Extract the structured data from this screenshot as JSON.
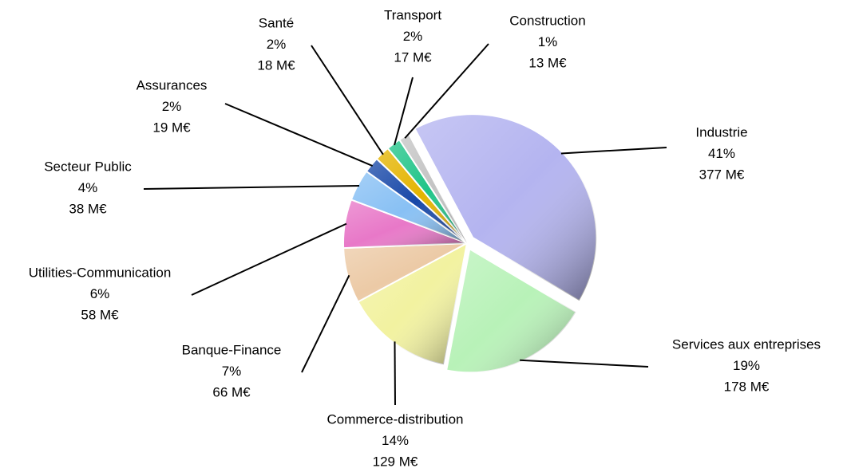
{
  "chart_data": {
    "type": "pie",
    "categories": [
      "Industrie",
      "Services aux entreprises",
      "Commerce-distribution",
      "Banque-Finance",
      "Utilities-Communication",
      "Secteur Public",
      "Assurances",
      "Santé",
      "Transport",
      "Construction"
    ],
    "values": [
      377,
      178,
      129,
      66,
      58,
      38,
      19,
      18,
      17,
      13
    ],
    "value_labels": [
      "377 M€",
      "178 M€",
      "129 M€",
      "66 M€",
      "58 M€",
      "38 M€",
      "19 M€",
      "18 M€",
      "17 M€",
      "13 M€"
    ],
    "percent_labels": [
      "41%",
      "19%",
      "14%",
      "7%",
      "6%",
      "4%",
      "2%",
      "2%",
      "2%",
      "1%"
    ],
    "colors": [
      "#b4b4f0",
      "#b8f2b8",
      "#f2f2a0",
      "#eccaa6",
      "#e878c8",
      "#88c0f4",
      "#1848a8",
      "#e4b400",
      "#20c488",
      "#c4c4c4"
    ]
  }
}
